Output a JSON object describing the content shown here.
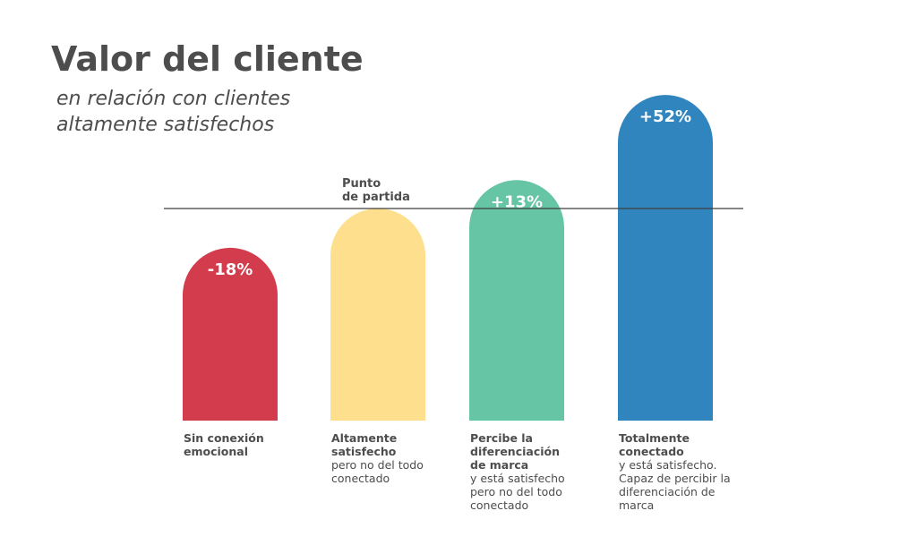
{
  "title": "Valor del cliente",
  "subtitle": [
    "en relación con clientes",
    "altamente satisfechos"
  ],
  "chart_data": {
    "type": "bar",
    "title": "Valor del cliente",
    "subtitle": "en relación con clientes altamente satisfechos",
    "baseline_value": 0,
    "baseline_label": [
      "Punto",
      "de partida"
    ],
    "ylim": [
      -55,
      55
    ],
    "grid": false,
    "legend": "none",
    "categories": [
      {
        "name": [
          "Sin conexión",
          "emocional"
        ],
        "description": [],
        "value": -18,
        "label": "-18%",
        "color": "#d33c4c"
      },
      {
        "name": [
          "Altamente",
          "satisfecho"
        ],
        "description": [
          "pero no del todo",
          "conectado"
        ],
        "value": 0,
        "label": "",
        "color": "#fddf8e"
      },
      {
        "name": [
          "Percibe la",
          "diferenciación",
          "de marca"
        ],
        "description": [
          "y está satisfecho",
          "pero no del todo",
          "conectado"
        ],
        "value": 13,
        "label": "+13%",
        "color": "#65c5a4"
      },
      {
        "name": [
          "Totalmente",
          "conectado"
        ],
        "description": [
          "y está satisfecho.",
          "Capaz de percibir la",
          "diferenciación de",
          "marca"
        ],
        "value": 52,
        "label": "+52%",
        "color": "#3185bf"
      }
    ]
  }
}
